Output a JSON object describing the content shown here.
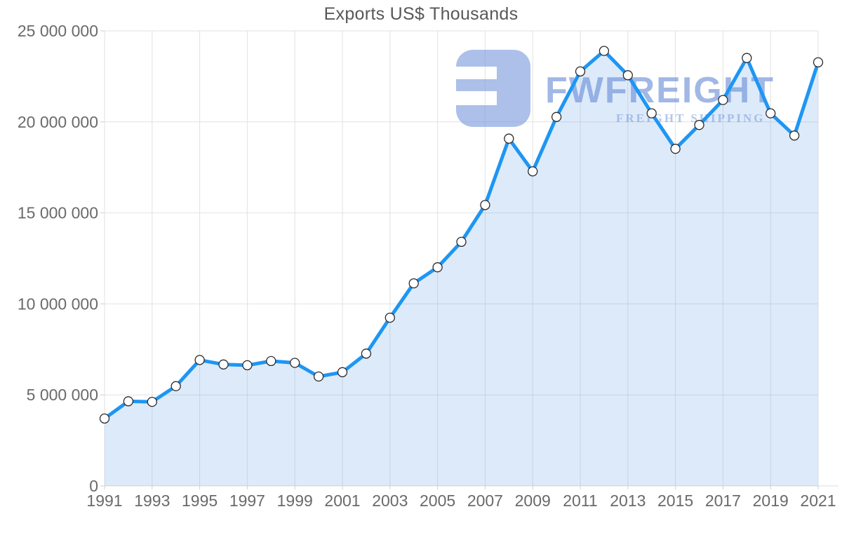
{
  "watermark": {
    "brand": "FWFREIGHT",
    "tagline": "FREIGHT SHIPPING"
  },
  "colors": {
    "line": "#1e96f3",
    "area_fill_rendered": "#ddeafb",
    "marker_fill": "#ffffff",
    "marker_stroke": "#2b2b2b",
    "gridline": "#e2e2e2",
    "axis_text": "#6a6a6a",
    "title_text": "#57585a",
    "watermark_blue": "#a9bfe9"
  },
  "chart_data": {
    "type": "area",
    "title": "Exports US$ Thousands",
    "xlabel": "",
    "ylabel": "",
    "legend_position": "none",
    "grid": true,
    "marker": "circle",
    "ylim": [
      0,
      25000000
    ],
    "x": [
      1991,
      1992,
      1993,
      1994,
      1995,
      1996,
      1997,
      1998,
      1999,
      2000,
      2001,
      2002,
      2003,
      2004,
      2005,
      2006,
      2007,
      2008,
      2009,
      2010,
      2011,
      2012,
      2013,
      2014,
      2015,
      2016,
      2017,
      2018,
      2019,
      2020,
      2021
    ],
    "values": [
      3700000,
      4650000,
      4620000,
      5480000,
      6920000,
      6670000,
      6630000,
      6860000,
      6760000,
      6010000,
      6250000,
      7270000,
      9240000,
      11130000,
      12010000,
      13410000,
      15430000,
      19080000,
      17280000,
      20270000,
      22770000,
      23900000,
      22560000,
      20470000,
      18520000,
      19830000,
      21200000,
      23510000,
      20470000,
      19250000,
      23270000
    ],
    "y_tick_values": [
      0,
      5000000,
      10000000,
      15000000,
      20000000,
      25000000
    ],
    "y_tick_labels": [
      "0",
      "5 000 000",
      "10 000 000",
      "15 000 000",
      "20 000 000",
      "25 000 000"
    ],
    "x_tick_years": [
      1991,
      1993,
      1995,
      1997,
      1999,
      2001,
      2003,
      2005,
      2007,
      2009,
      2011,
      2013,
      2015,
      2017,
      2019,
      2021
    ],
    "x_tick_labels": [
      "1991",
      "1993",
      "1995",
      "1997",
      "1999",
      "2001",
      "2003",
      "2005",
      "2007",
      "2009",
      "2011",
      "2013",
      "2015",
      "2017",
      "2019",
      "2021"
    ]
  }
}
